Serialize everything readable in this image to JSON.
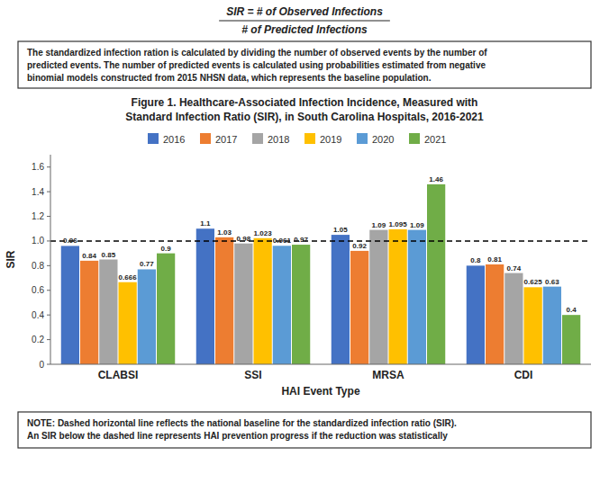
{
  "chart_data": {
    "type": "bar",
    "title": "Figure 1. Healthcare-Associated Infection Incidence, Measured with\nStandard Infection Ratio (SIR), in South Carolina Hospitals, 2016-2021",
    "x_label": "HAI Event Type",
    "y_label": "SIR",
    "annotations": [
      "SIR = # of Observed Infections",
      "# of Predicted Infections",
      "The standardized infection ration is calculated by dividing the number of observed events by the number of\npredicted events. The number of predicted events is calculated using probabilities estimated from negative\nbinomial models constructed from 2015 NHSN data, which represents the baseline population.",
      "NOTE: Dashed horizontal line reflects the national baseline for the standardized infection ratio (SIR).\nAn SIR below the dashed line represents HAI prevention progress if the reduction was statistically"
    ],
    "categories": [
      "CLABSI",
      "SSI",
      "MRSA",
      "CDI"
    ],
    "series": [
      {
        "name": "2016",
        "color": "#4472C4",
        "values": [
          0.96,
          1.1,
          1.05,
          0.8
        ]
      },
      {
        "name": "2017",
        "color": "#ED7D31",
        "values": [
          0.84,
          1.03,
          0.92,
          0.81
        ]
      },
      {
        "name": "2018",
        "color": "#A5A5A5",
        "values": [
          0.85,
          0.98,
          1.09,
          0.74
        ]
      },
      {
        "name": "2019",
        "color": "#FFC000",
        "values": [
          0.666,
          1.023,
          1.095,
          0.625
        ]
      },
      {
        "name": "2020",
        "color": "#5B9BD5",
        "values": [
          0.77,
          0.961,
          1.09,
          0.63
        ]
      },
      {
        "name": "2021",
        "color": "#70AD47",
        "values": [
          0.9,
          0.97,
          1.46,
          0.4
        ]
      }
    ],
    "ylim": [
      0,
      1.7
    ],
    "yticks": [
      0,
      0.2,
      0.4,
      0.6,
      0.8,
      {
        "value": 1.0,
        "label": "1.0"
      },
      1.2,
      1.4,
      1.6
    ],
    "reference_lines": [
      {
        "y": 1.0,
        "line_style": "dashed"
      }
    ],
    "legend": "top",
    "grid": false,
    "data_labels": true
  }
}
